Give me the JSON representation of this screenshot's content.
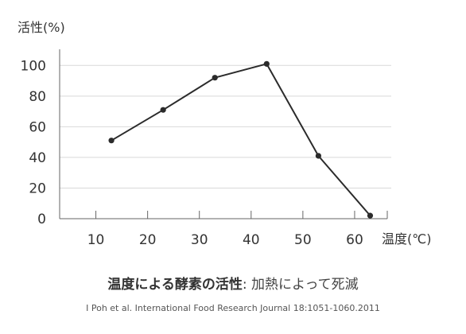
{
  "chart_data": {
    "type": "line",
    "title": "温度による酵素の活性",
    "subtitle": "加熱によって死滅",
    "separator": ":",
    "xlabel": "温度(℃)",
    "ylabel": "活性(%)",
    "x_ticks": [
      10,
      20,
      30,
      40,
      50,
      60
    ],
    "y_ticks": [
      0,
      20,
      40,
      60,
      80,
      100
    ],
    "xlim": [
      3,
      66
    ],
    "ylim": [
      0,
      110
    ],
    "grid": true,
    "series": [
      {
        "x": [
          13,
          23,
          33,
          43,
          53,
          63
        ],
        "values": [
          51,
          71,
          92,
          101,
          41,
          2
        ],
        "color": "#2b2b2b"
      }
    ],
    "source": "I Poh et al. International Food Research Journal 18:1051-1060.2011"
  }
}
